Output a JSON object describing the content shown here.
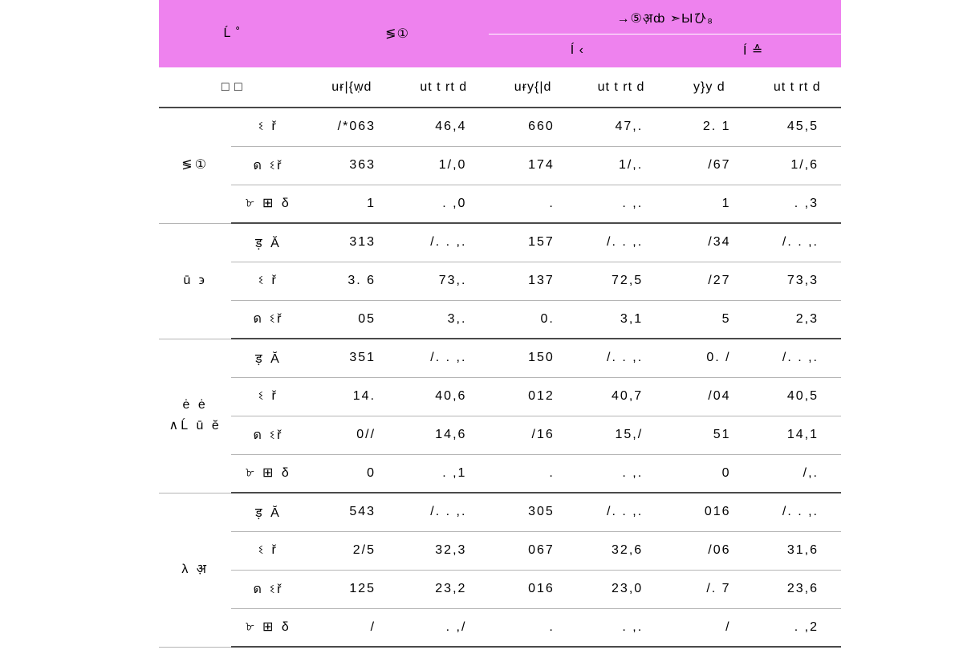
{
  "header": {
    "col1": "Ĺ ˚",
    "col2": "≶①",
    "group3": "→⑤अ़ȸ   ➣Ыひ₈",
    "sub3a": "Í  ‹",
    "sub3b": "Í  ≙"
  },
  "subHeader": {
    "c1a": "□ □",
    "c2a": "uɍ|{ẉd",
    "c2b": "ut t rt d",
    "c3a": "uɍy{|d",
    "c3b": "ut t rt d",
    "c4a": "y}y d",
    "c4b": "ut t rt d"
  },
  "groups": [
    {
      "title": "≶①",
      "rows": [
        {
          "label": "ଽ    ř",
          "v": [
            "/*063",
            "46,4",
            "660",
            "47,.",
            "2. 1",
            "45,5"
          ]
        },
        {
          "label": "ด ଽř",
          "v": [
            "363",
            "1/,0",
            "174",
            "1/,.",
            "/67",
            "1/,6"
          ]
        },
        {
          "label": "৮ ⊞ δ",
          "v": [
            "1",
            ". ,0",
            ".",
            ". ,.",
            "1",
            ". ,3"
          ]
        }
      ]
    },
    {
      "title": "ū ϶",
      "rows": [
        {
          "label": "ड़    Ă",
          "v": [
            "313",
            "/. . ,.",
            "157",
            "/. . ,.",
            "/34",
            "/. . ,."
          ]
        },
        {
          "label": "ଽ    ř",
          "v": [
            "3. 6",
            "73,.",
            "137",
            "72,5",
            "/27",
            "73,3"
          ]
        },
        {
          "label": "ด ଽř",
          "v": [
            "05",
            "3,.",
            "0.",
            "3,1",
            "5",
            "2,3"
          ]
        }
      ]
    },
    {
      "title": "ė ė\n∧Ĺ ū ĕ",
      "rows": [
        {
          "label": "ड़    Ă",
          "v": [
            "351",
            "/. . ,.",
            "150",
            "/. . ,.",
            "0. /",
            "/. . ,."
          ]
        },
        {
          "label": "ଽ    ř",
          "v": [
            "14.",
            "40,6",
            "012",
            "40,7",
            "/04",
            "40,5"
          ]
        },
        {
          "label": "ด ଽř",
          "v": [
            "0//",
            "14,6",
            "/16",
            "15,/",
            "51",
            "14,1"
          ]
        },
        {
          "label": "৮ ⊞ δ",
          "v": [
            "0",
            ". ,1",
            ".",
            ". ,.",
            "0",
            "/,."
          ]
        }
      ]
    },
    {
      "title": "λ अ़",
      "rows": [
        {
          "label": "ड़    Ă",
          "v": [
            "543",
            "/. . ,.",
            "305",
            "/. . ,.",
            "016",
            "/. . ,."
          ]
        },
        {
          "label": "ଽ    ř",
          "v": [
            "2/5",
            "32,3",
            "067",
            "32,6",
            "/06",
            "31,6"
          ]
        },
        {
          "label": "ด ଽř",
          "v": [
            "125",
            "23,2",
            "016",
            "23,0",
            "/. 7",
            "23,6"
          ]
        },
        {
          "label": "৮ ⊞ δ",
          "v": [
            "/",
            ". ,/",
            ".",
            ". ,.",
            "/",
            ". ,2"
          ]
        }
      ]
    }
  ],
  "style": {
    "headerBg": "#ee82ee",
    "text": "#000000",
    "ruleStrong": "#4a4a4a",
    "ruleLight": "#b5b5b5",
    "bodyBg": "#ffffff"
  }
}
